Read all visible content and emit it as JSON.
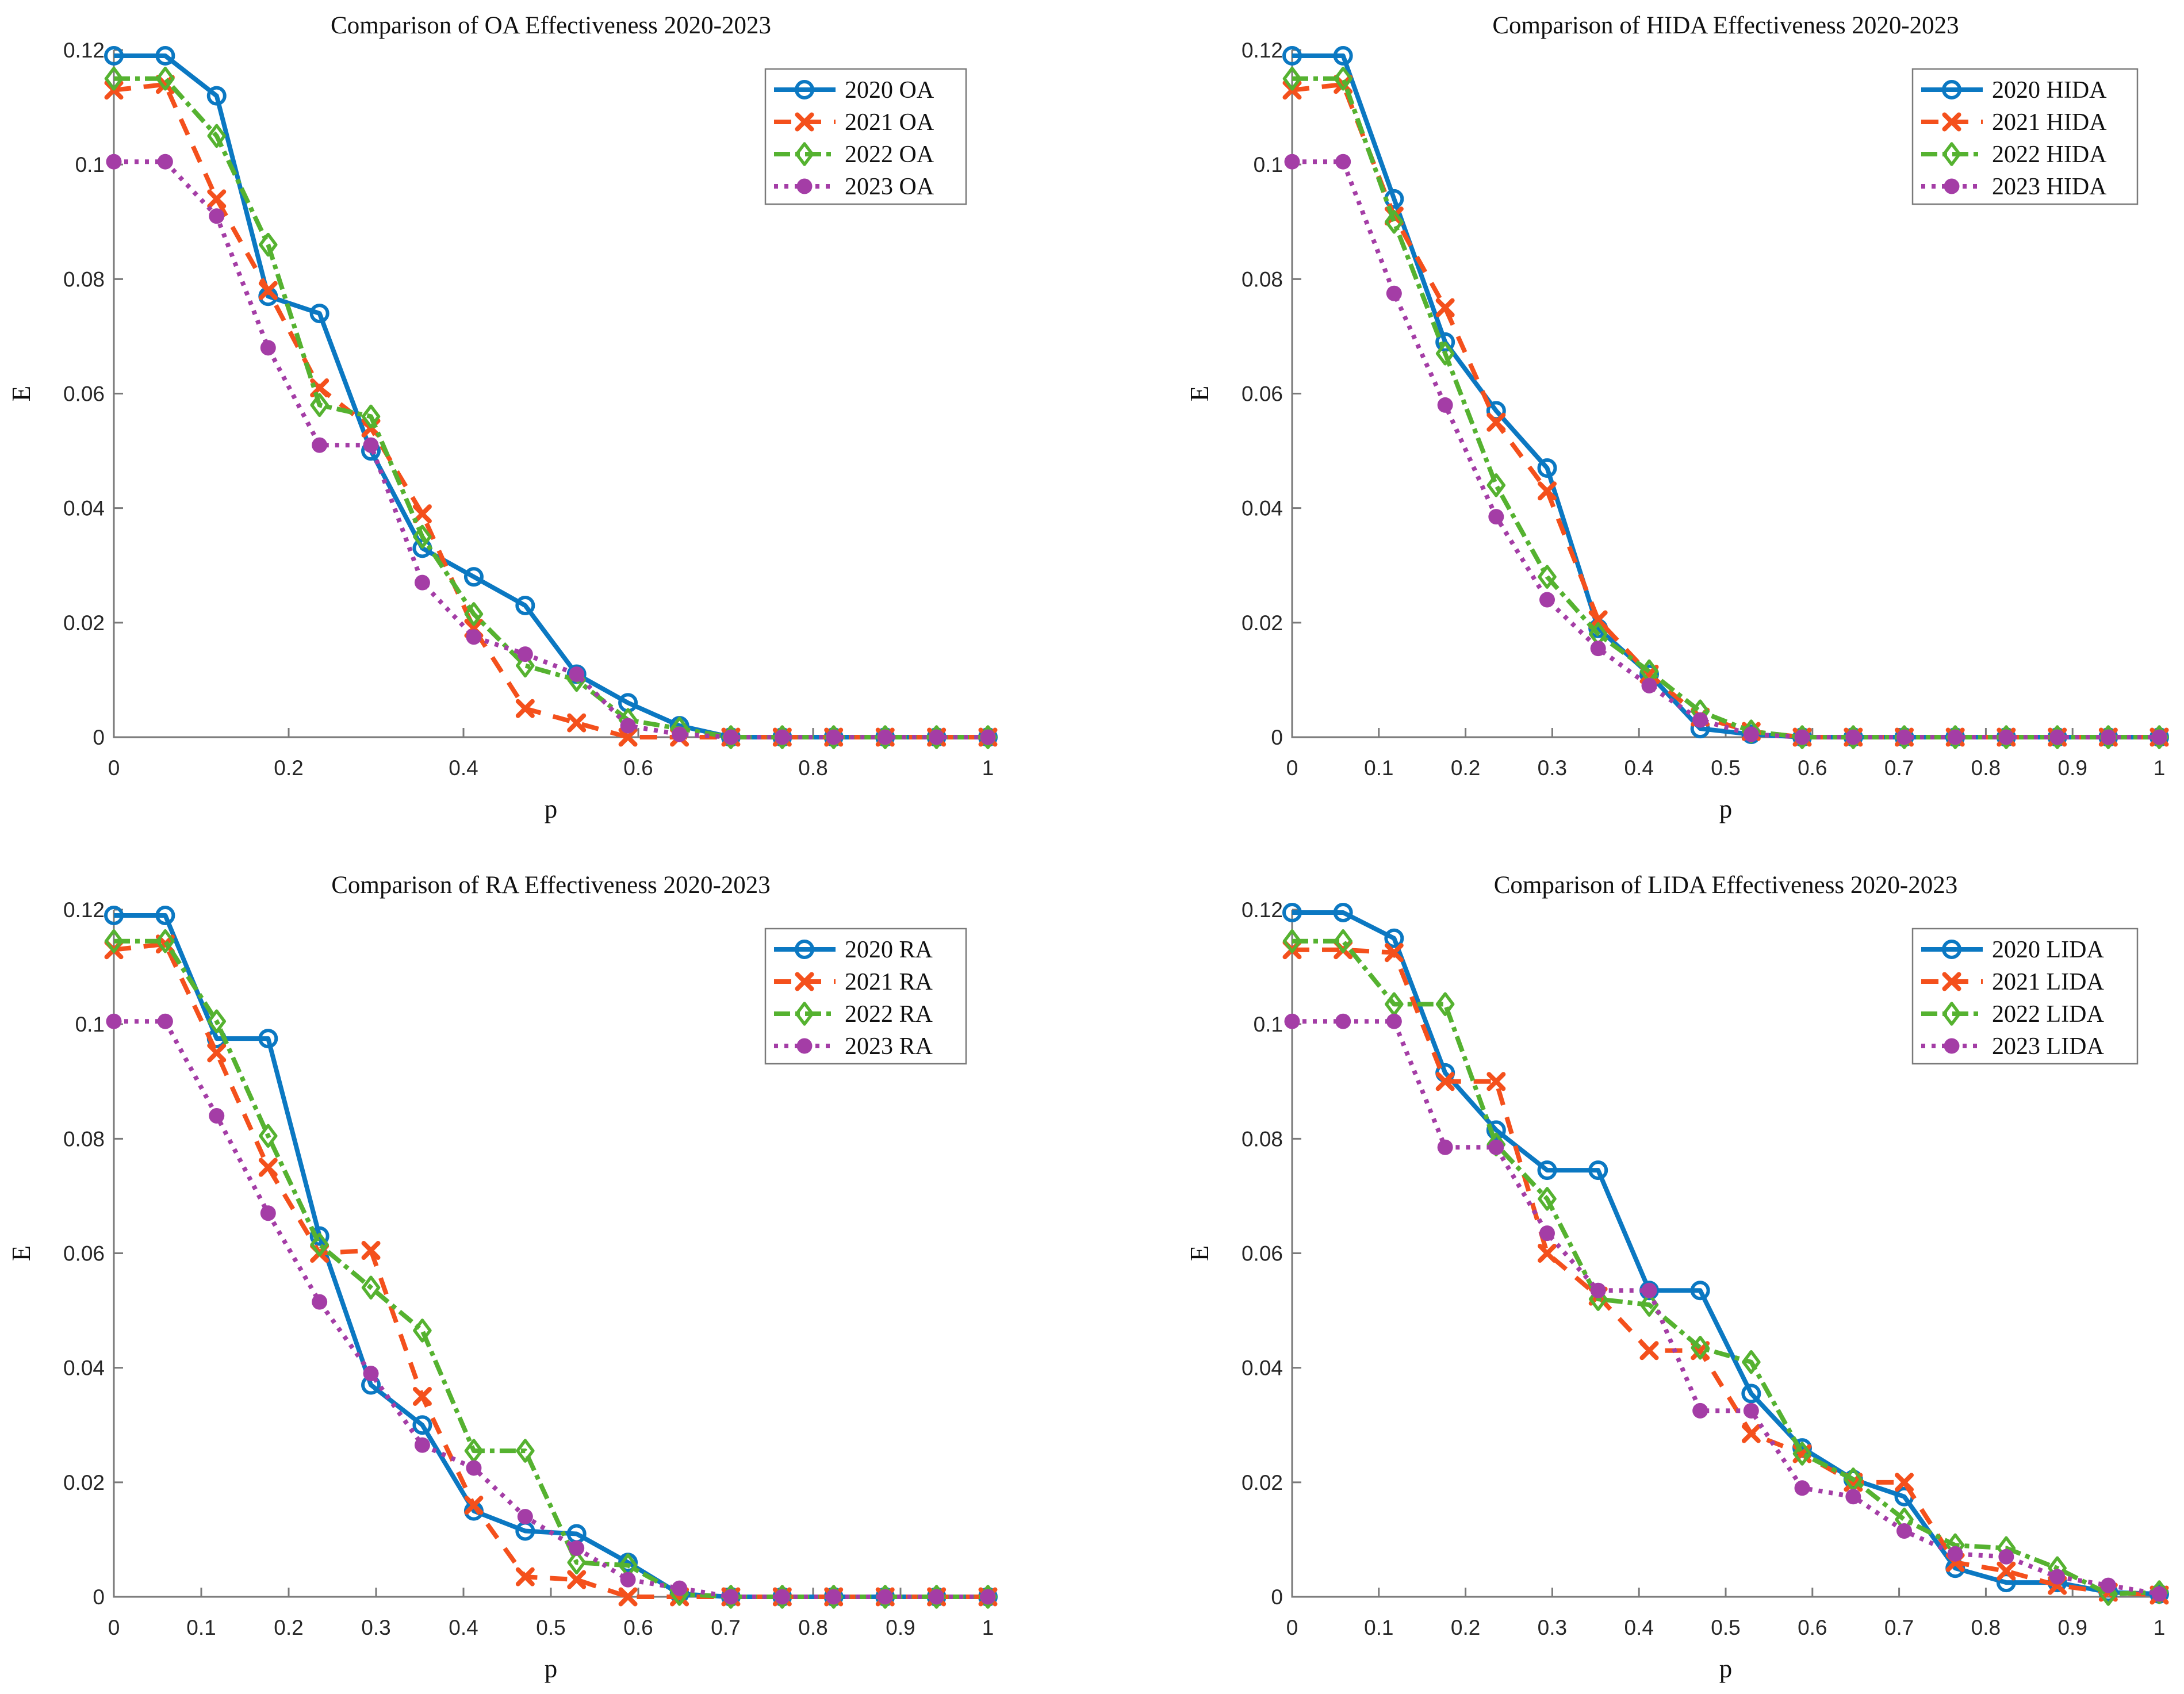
{
  "figure": {
    "background": "#ffffff",
    "axis_color": "#7a7a7a",
    "text_color": "#111111",
    "tick_label_color": "#262626"
  },
  "chart_data": [
    {
      "id": "oa",
      "type": "line",
      "title": "Comparison of OA Effectiveness 2020-2023",
      "xlabel": "p",
      "ylabel": "E",
      "xlim": [
        0,
        1
      ],
      "ylim": [
        0,
        0.12
      ],
      "grid": false,
      "legend_position": "top-right",
      "xtick_values": [
        0,
        0.2,
        0.4,
        0.6,
        0.8,
        1
      ],
      "xtick_labels": [
        "0",
        "0.2",
        "0.4",
        "0.6",
        "0.8",
        "1"
      ],
      "ytick_values": [
        0,
        0.02,
        0.04,
        0.06,
        0.08,
        0.1,
        0.12
      ],
      "ytick_labels": [
        "0",
        "0.02",
        "0.04",
        "0.06",
        "0.08",
        "0.1",
        "0.12"
      ],
      "x": [
        0,
        0.0588,
        0.1176,
        0.1765,
        0.2353,
        0.2941,
        0.3529,
        0.4118,
        0.4706,
        0.5294,
        0.5882,
        0.6471,
        0.7059,
        0.7647,
        0.8235,
        0.8824,
        0.9412,
        1
      ],
      "series": [
        {
          "name": "2020 OA",
          "color": "#0B78C2",
          "line_style": "solid",
          "marker": "circle-open",
          "values": [
            0.119,
            0.119,
            0.112,
            0.077,
            0.074,
            0.05,
            0.033,
            0.028,
            0.023,
            0.011,
            0.006,
            0.002,
            0,
            0,
            0,
            0,
            0,
            0
          ]
        },
        {
          "name": "2021 OA",
          "color": "#F4501C",
          "line_style": "dashed",
          "marker": "x",
          "values": [
            0.113,
            0.114,
            0.094,
            0.078,
            0.061,
            0.054,
            0.039,
            0.019,
            0.005,
            0.0025,
            0,
            0,
            0,
            0,
            0,
            0,
            0,
            0
          ]
        },
        {
          "name": "2022 OA",
          "color": "#55B230",
          "line_style": "dashdot",
          "marker": "diamond-open",
          "values": [
            0.115,
            0.115,
            0.105,
            0.086,
            0.058,
            0.056,
            0.035,
            0.0215,
            0.0125,
            0.01,
            0.003,
            0.0015,
            0,
            0,
            0,
            0,
            0,
            0
          ]
        },
        {
          "name": "2023 OA",
          "color": "#A43DA6",
          "line_style": "dotted",
          "marker": "circle-filled",
          "values": [
            0.1005,
            0.1005,
            0.091,
            0.068,
            0.051,
            0.051,
            0.027,
            0.0175,
            0.0145,
            0.011,
            0.002,
            0.0005,
            0,
            0,
            0,
            0,
            0,
            0
          ]
        }
      ]
    },
    {
      "id": "hida",
      "type": "line",
      "title": "Comparison of HIDA Effectiveness 2020-2023",
      "xlabel": "p",
      "ylabel": "E",
      "xlim": [
        0,
        1
      ],
      "ylim": [
        0,
        0.12
      ],
      "grid": false,
      "legend_position": "top-right",
      "xtick_values": [
        0,
        0.1,
        0.2,
        0.3,
        0.4,
        0.5,
        0.6,
        0.7,
        0.8,
        0.9,
        1
      ],
      "xtick_labels": [
        "0",
        "0.1",
        "0.2",
        "0.3",
        "0.4",
        "0.5",
        "0.6",
        "0.7",
        "0.8",
        "0.9",
        "1"
      ],
      "ytick_values": [
        0,
        0.02,
        0.04,
        0.06,
        0.08,
        0.1,
        0.12
      ],
      "ytick_labels": [
        "0",
        "0.02",
        "0.04",
        "0.06",
        "0.08",
        "0.1",
        "0.12"
      ],
      "x": [
        0,
        0.0588,
        0.1176,
        0.1765,
        0.2353,
        0.2941,
        0.3529,
        0.4118,
        0.4706,
        0.5294,
        0.5882,
        0.6471,
        0.7059,
        0.7647,
        0.8235,
        0.8824,
        0.9412,
        1
      ],
      "series": [
        {
          "name": "2020 HIDA",
          "color": "#0B78C2",
          "line_style": "solid",
          "marker": "circle-open",
          "values": [
            0.119,
            0.119,
            0.094,
            0.069,
            0.057,
            0.047,
            0.019,
            0.011,
            0.0015,
            0.0005,
            0,
            0,
            0,
            0,
            0,
            0,
            0,
            0
          ]
        },
        {
          "name": "2021 HIDA",
          "color": "#F4501C",
          "line_style": "dashed",
          "marker": "x",
          "values": [
            0.113,
            0.114,
            0.091,
            0.075,
            0.055,
            0.043,
            0.0205,
            0.011,
            0.0035,
            0.001,
            0,
            0,
            0,
            0,
            0,
            0,
            0,
            0
          ]
        },
        {
          "name": "2022 HIDA",
          "color": "#55B230",
          "line_style": "dashdot",
          "marker": "diamond-open",
          "values": [
            0.115,
            0.115,
            0.09,
            0.067,
            0.044,
            0.028,
            0.018,
            0.0115,
            0.0045,
            0.001,
            0,
            0,
            0,
            0,
            0,
            0,
            0,
            0
          ]
        },
        {
          "name": "2023 HIDA",
          "color": "#A43DA6",
          "line_style": "dotted",
          "marker": "circle-filled",
          "values": [
            0.1005,
            0.1005,
            0.0775,
            0.058,
            0.0385,
            0.024,
            0.0155,
            0.009,
            0.003,
            0.0005,
            0,
            0,
            0,
            0,
            0,
            0,
            0,
            0
          ]
        }
      ]
    },
    {
      "id": "ra",
      "type": "line",
      "title": "Comparison of RA Effectiveness 2020-2023",
      "xlabel": "p",
      "ylabel": "E",
      "xlim": [
        0,
        1
      ],
      "ylim": [
        0,
        0.12
      ],
      "grid": false,
      "legend_position": "top-right",
      "xtick_values": [
        0,
        0.1,
        0.2,
        0.3,
        0.4,
        0.5,
        0.6,
        0.7,
        0.8,
        0.9,
        1
      ],
      "xtick_labels": [
        "0",
        "0.1",
        "0.2",
        "0.3",
        "0.4",
        "0.5",
        "0.6",
        "0.7",
        "0.8",
        "0.9",
        "1"
      ],
      "ytick_values": [
        0,
        0.02,
        0.04,
        0.06,
        0.08,
        0.1,
        0.12
      ],
      "ytick_labels": [
        "0",
        "0.02",
        "0.04",
        "0.06",
        "0.08",
        "0.1",
        "0.12"
      ],
      "x": [
        0,
        0.0588,
        0.1176,
        0.1765,
        0.2353,
        0.2941,
        0.3529,
        0.4118,
        0.4706,
        0.5294,
        0.5882,
        0.6471,
        0.7059,
        0.7647,
        0.8235,
        0.8824,
        0.9412,
        1
      ],
      "series": [
        {
          "name": "2020 RA",
          "color": "#0B78C2",
          "line_style": "solid",
          "marker": "circle-open",
          "values": [
            0.119,
            0.119,
            0.0975,
            0.0975,
            0.063,
            0.037,
            0.03,
            0.015,
            0.0115,
            0.011,
            0.006,
            0.0005,
            0,
            0,
            0,
            0,
            0,
            0
          ]
        },
        {
          "name": "2021 RA",
          "color": "#F4501C",
          "line_style": "dashed",
          "marker": "x",
          "values": [
            0.113,
            0.114,
            0.095,
            0.075,
            0.06,
            0.0605,
            0.035,
            0.016,
            0.0035,
            0.003,
            0,
            0,
            0,
            0,
            0,
            0,
            0,
            0
          ]
        },
        {
          "name": "2022 RA",
          "color": "#55B230",
          "line_style": "dashdot",
          "marker": "diamond-open",
          "values": [
            0.1145,
            0.1145,
            0.1005,
            0.0805,
            0.0615,
            0.054,
            0.0465,
            0.0255,
            0.0255,
            0.006,
            0.0055,
            0.0005,
            0,
            0,
            0,
            0,
            0,
            0
          ]
        },
        {
          "name": "2023 RA",
          "color": "#A43DA6",
          "line_style": "dotted",
          "marker": "circle-filled",
          "values": [
            0.1005,
            0.1005,
            0.084,
            0.067,
            0.0515,
            0.039,
            0.0265,
            0.0225,
            0.014,
            0.0085,
            0.003,
            0.0015,
            0,
            0,
            0,
            0,
            0,
            0
          ]
        }
      ]
    },
    {
      "id": "lida",
      "type": "line",
      "title": "Comparison of LIDA Effectiveness 2020-2023",
      "xlabel": "p",
      "ylabel": "E",
      "xlim": [
        0,
        1
      ],
      "ylim": [
        0,
        0.12
      ],
      "grid": false,
      "legend_position": "top-right",
      "xtick_values": [
        0,
        0.1,
        0.2,
        0.3,
        0.4,
        0.5,
        0.6,
        0.7,
        0.8,
        0.9,
        1
      ],
      "xtick_labels": [
        "0",
        "0.1",
        "0.2",
        "0.3",
        "0.4",
        "0.5",
        "0.6",
        "0.7",
        "0.8",
        "0.9",
        "1"
      ],
      "ytick_values": [
        0,
        0.02,
        0.04,
        0.06,
        0.08,
        0.1,
        0.12
      ],
      "ytick_labels": [
        "0",
        "0.02",
        "0.04",
        "0.06",
        "0.08",
        "0.1",
        "0.12"
      ],
      "x": [
        0,
        0.0588,
        0.1176,
        0.1765,
        0.2353,
        0.2941,
        0.3529,
        0.4118,
        0.4706,
        0.5294,
        0.5882,
        0.6471,
        0.7059,
        0.7647,
        0.8235,
        0.8824,
        0.9412,
        1
      ],
      "series": [
        {
          "name": "2020 LIDA",
          "color": "#0B78C2",
          "line_style": "solid",
          "marker": "circle-open",
          "values": [
            0.1195,
            0.1195,
            0.115,
            0.0915,
            0.0815,
            0.0745,
            0.0745,
            0.0535,
            0.0535,
            0.0355,
            0.026,
            0.0205,
            0.0175,
            0.005,
            0.0025,
            0.0025,
            0.0008,
            0.0005
          ]
        },
        {
          "name": "2021 LIDA",
          "color": "#F4501C",
          "line_style": "dashed",
          "marker": "x",
          "values": [
            0.113,
            0.113,
            0.1125,
            0.09,
            0.09,
            0.06,
            0.0525,
            0.043,
            0.043,
            0.0285,
            0.025,
            0.02,
            0.02,
            0.006,
            0.0045,
            0.002,
            0.0008,
            0.0003
          ]
        },
        {
          "name": "2022 LIDA",
          "color": "#55B230",
          "line_style": "dashdot",
          "marker": "diamond-open",
          "values": [
            0.1145,
            0.1145,
            0.1035,
            0.1035,
            0.079,
            0.0695,
            0.052,
            0.051,
            0.0435,
            0.041,
            0.025,
            0.0205,
            0.0135,
            0.009,
            0.0085,
            0.005,
            0.0005,
            0.0008
          ]
        },
        {
          "name": "2023 LIDA",
          "color": "#A43DA6",
          "line_style": "dotted",
          "marker": "circle-filled",
          "values": [
            0.1005,
            0.1005,
            0.1005,
            0.0785,
            0.0785,
            0.0635,
            0.0535,
            0.0535,
            0.0325,
            0.0325,
            0.019,
            0.0175,
            0.0115,
            0.0075,
            0.007,
            0.0035,
            0.002,
            0.0005
          ]
        }
      ]
    }
  ]
}
